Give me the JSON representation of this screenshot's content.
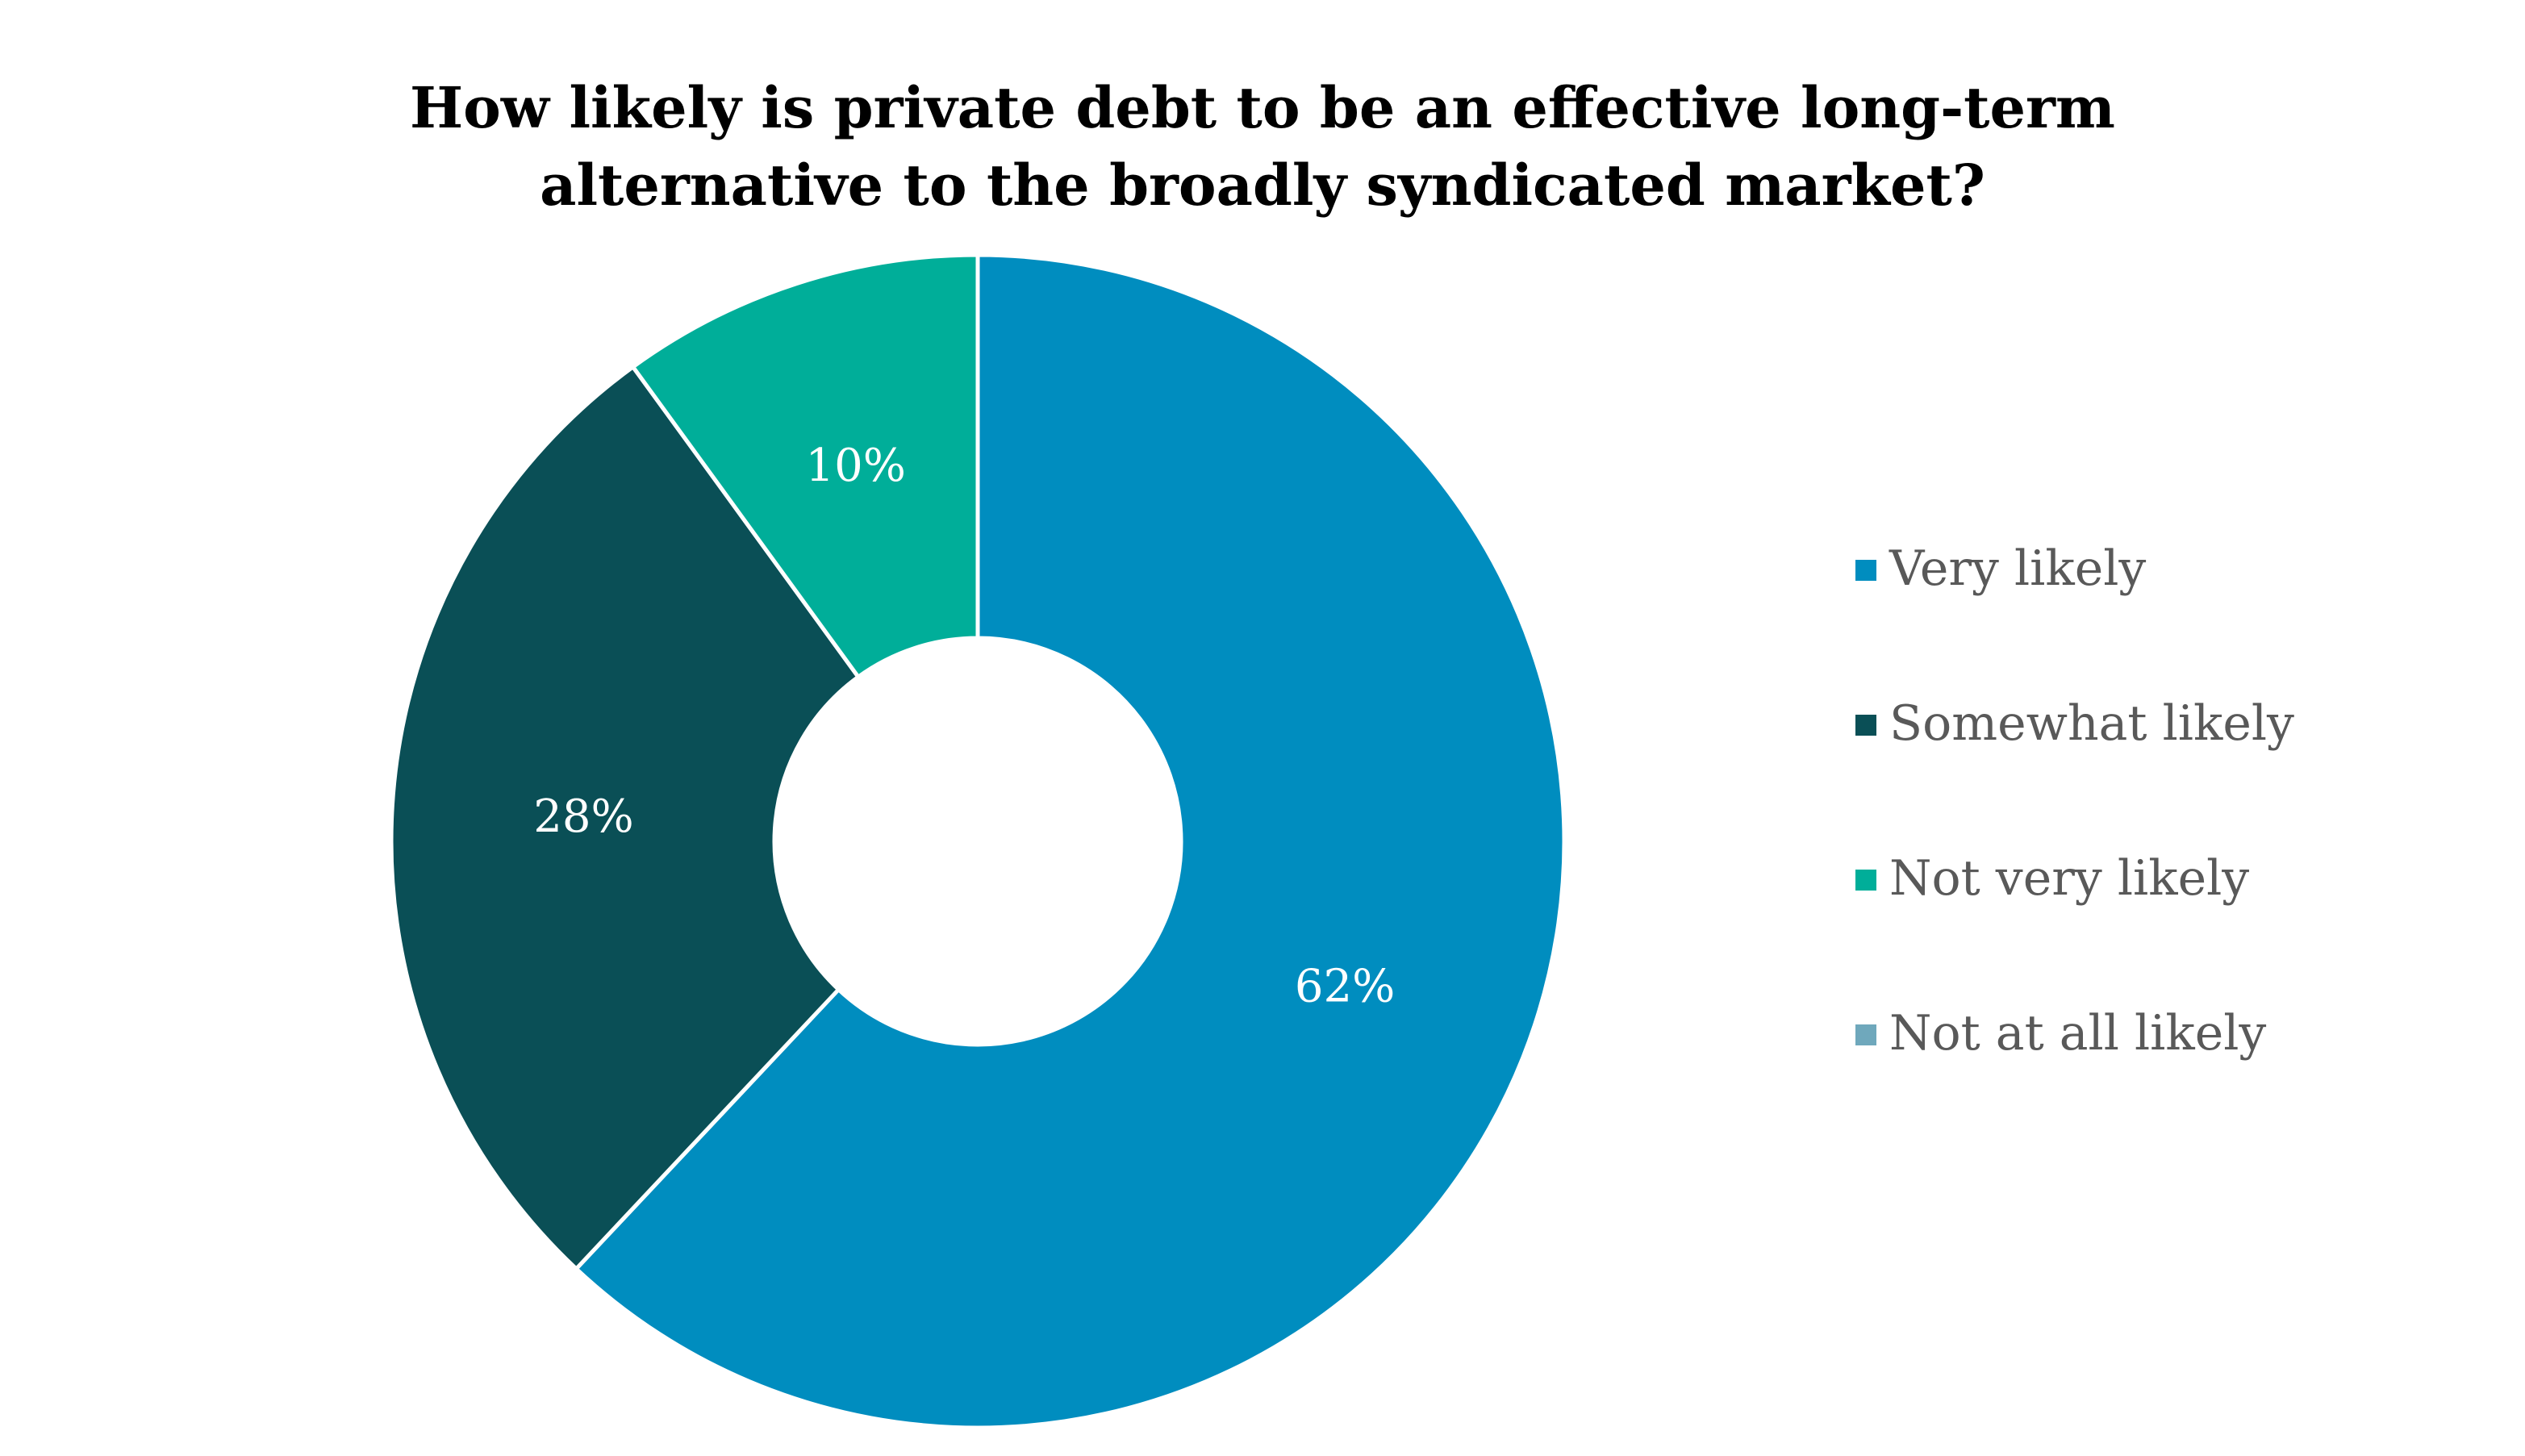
{
  "chart_data": {
    "type": "pie",
    "variant": "donut",
    "title_lines": [
      "How likely is private debt to be an effective long-term",
      "alternative to the broadly syndicated market?"
    ],
    "categories": [
      "Very likely",
      "Somewhat likely",
      "Not very likely",
      "Not at all likely"
    ],
    "values": [
      62,
      28,
      10,
      0
    ],
    "value_labels": [
      "62%",
      "28%",
      "10%",
      ""
    ],
    "colors": [
      "#008DBF",
      "#0A4F56",
      "#00AE99",
      "#6FA8BC"
    ],
    "legend_position": "right",
    "slice_border_color": "#FFFFFF",
    "label_color": "#FFFFFF"
  }
}
